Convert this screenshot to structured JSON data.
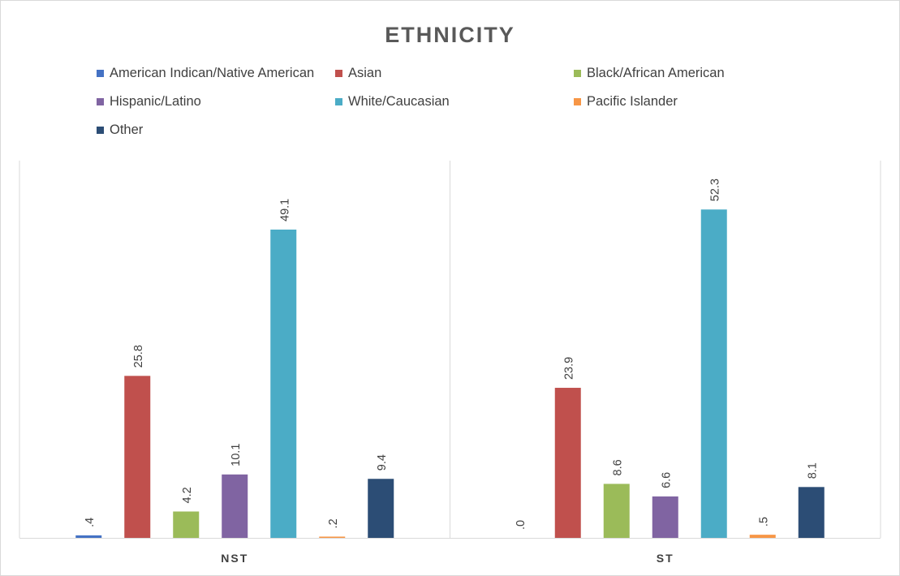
{
  "chart_data": {
    "type": "bar",
    "title": "ETHNICITY",
    "categories": [
      "NST",
      "ST"
    ],
    "series": [
      {
        "name": "American Indican/Native American",
        "color": "#4472c4",
        "values": [
          0.4,
          0.0
        ],
        "labels": [
          ".4",
          ".0"
        ]
      },
      {
        "name": "Asian",
        "color": "#c0504d",
        "values": [
          25.8,
          23.9
        ],
        "labels": [
          "25.8",
          "23.9"
        ]
      },
      {
        "name": "Black/African American",
        "color": "#9bbb59",
        "values": [
          4.2,
          8.6
        ],
        "labels": [
          "4.2",
          "8.6"
        ]
      },
      {
        "name": "Hispanic/Latino",
        "color": "#8064a2",
        "values": [
          10.1,
          6.6
        ],
        "labels": [
          "10.1",
          "6.6"
        ]
      },
      {
        "name": "White/Caucasian",
        "color": "#4bacc6",
        "values": [
          49.1,
          52.3
        ],
        "labels": [
          "49.1",
          "52.3"
        ]
      },
      {
        "name": "Pacific Islander",
        "color": "#f79646",
        "values": [
          0.2,
          0.5
        ],
        "labels": [
          ".2",
          ".5"
        ]
      },
      {
        "name": "Other",
        "color": "#2c4d75",
        "values": [
          9.4,
          8.1
        ],
        "labels": [
          "9.4",
          "8.1"
        ]
      }
    ],
    "ylim": [
      0,
      60
    ],
    "grid": false,
    "legend_position": "top"
  }
}
